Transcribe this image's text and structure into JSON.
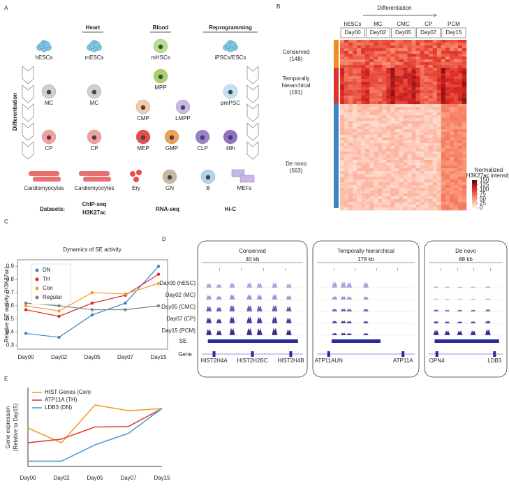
{
  "panel_a": {
    "label": "A",
    "groups": [
      "Heart",
      "Blood",
      "Reprogramming"
    ],
    "axis_label": "Differentiation",
    "cells": [
      "hESCs",
      "mESCs",
      "mHSCs",
      "iPSCs/ESCs",
      "MPP",
      "MC",
      "MC",
      "prePSC",
      "CMP",
      "LMPP",
      "CP",
      "CP",
      "MEP",
      "GMP",
      "CLP",
      "48h",
      "Cardiomyocytes",
      "Cardiomyocytes",
      "Ery",
      "GN",
      "B",
      "MEFs"
    ],
    "datasets_label": "Datasets:",
    "datasets": [
      [
        "ChIP-seq",
        "H3K27ac"
      ],
      [
        "RNA-seq"
      ],
      [
        "Hi-C"
      ]
    ]
  },
  "panel_b": {
    "label": "B",
    "arrow_label": "Differentiation",
    "stages": [
      "hESCs",
      "MC",
      "CMC",
      "CP",
      "PCM"
    ],
    "days": [
      "Day00",
      "Day02",
      "Day05",
      "Day07",
      "Day15"
    ],
    "groups": [
      [
        "Conserved",
        "(148)"
      ],
      [
        "Temporally",
        "hierarchical",
        "(191)"
      ],
      [
        "De novo",
        "(563)"
      ]
    ],
    "colorbar_title": [
      "Normalized",
      "H3K27ac intensity"
    ],
    "colorbar_range": [
      0,
      150
    ],
    "colorbar_ticks": [
      150,
      125,
      100,
      75,
      50,
      25,
      0
    ]
  },
  "panel_d": {
    "label": "D",
    "loci": [
      {
        "title": "Conserved",
        "scale": "40 kb",
        "genes": [
          "HIST2H4A",
          "HIST2H2BC",
          "HIST2H4B"
        ]
      },
      {
        "title": "Temporally hierarchical",
        "scale": "178 kb",
        "genes": [
          "ATP11AUN",
          "ATP11A"
        ]
      },
      {
        "title": "De novo",
        "scale": "88 kb",
        "genes": [
          "OPN4",
          "LDB3"
        ]
      }
    ],
    "tracks": [
      "Day00 (hESC)",
      "Day02 (MC)",
      "Day05 (CMC)",
      "Day07 (CP)",
      "Day15 (PCM)"
    ],
    "se_label": "SE",
    "gene_label": "Gene"
  },
  "chart_data": [
    {
      "panel_label": "C",
      "type": "line",
      "title": "Dynamics of SE activity",
      "y_label": [
        "Relative SE activity (H3K27ac)"
      ],
      "categories": [
        "Day00",
        "Day02",
        "Day05",
        "Day07",
        "Day15"
      ],
      "ylim": [
        0.27,
        0.95
      ],
      "yticks": [
        0.3,
        0.4,
        0.5,
        0.6,
        0.7,
        0.8,
        0.9
      ],
      "markers": true,
      "legend": "upper left",
      "series": [
        {
          "name": "DN",
          "color": "#3b82c4",
          "values": [
            0.39,
            0.36,
            0.53,
            0.62,
            0.9
          ]
        },
        {
          "name": "TH",
          "color": "#d62728",
          "values": [
            0.57,
            0.52,
            0.62,
            0.68,
            0.84
          ]
        },
        {
          "name": "Con",
          "color": "#f39c2a",
          "values": [
            0.6,
            0.56,
            0.7,
            0.69,
            0.77
          ]
        },
        {
          "name": "Regular",
          "color": "#808080",
          "values": [
            0.62,
            0.6,
            0.57,
            0.57,
            0.6
          ]
        }
      ]
    },
    {
      "panel_label": "E",
      "type": "line",
      "y_label": [
        "Gene expression",
        "(Relative to Day15)"
      ],
      "categories": [
        "Day00",
        "Day02",
        "Day05",
        "Day07",
        "Day15"
      ],
      "ylim": [
        -0.1,
        1.4
      ],
      "markers": false,
      "legend": "upper left",
      "series": [
        {
          "name": "HIST Genes (Con)",
          "color": "#f39c2a",
          "values": [
            0.63,
            0.35,
            1.07,
            0.96,
            1.0
          ]
        },
        {
          "name": "ATP11A (TH)",
          "color": "#e0413a",
          "values": [
            0.35,
            0.42,
            0.65,
            0.66,
            1.0
          ]
        },
        {
          "name": "LDB3 (DN)",
          "color": "#4a9fd8",
          "values": [
            0.0,
            0.0,
            0.31,
            0.53,
            1.0
          ]
        }
      ]
    }
  ]
}
